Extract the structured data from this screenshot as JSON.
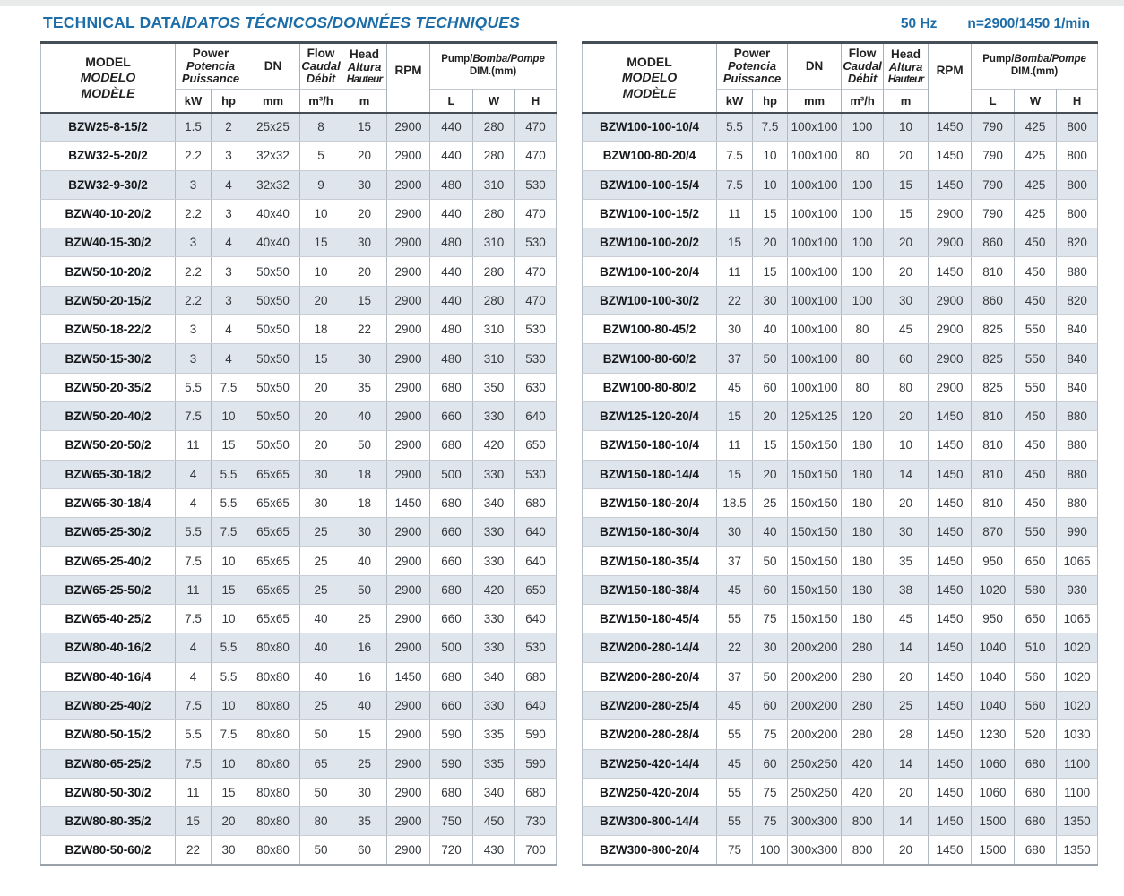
{
  "title": {
    "main": "TECHNICAL DATA/",
    "italic": "DATOS TÉCNICOS/DONNÉES TECHNIQUES"
  },
  "header_right": {
    "frequency": "50 Hz",
    "speed": "n=2900/1450 1/min"
  },
  "colors": {
    "accent_blue": "#1c6da8",
    "row_stripe": "#dfe5ec",
    "border_dark": "#474f56"
  },
  "columns": {
    "model": [
      "MODEL",
      "MODELO",
      "MODÈLE"
    ],
    "power": [
      "Power",
      "Potencia",
      "Puissance"
    ],
    "dn": "DN",
    "flow": [
      "Flow",
      "Caudal",
      "Débit"
    ],
    "head": [
      "Head",
      "Altura",
      "Hauteur"
    ],
    "rpm": "RPM",
    "pump_dim_line1_a": "Pump/",
    "pump_dim_line1_b": "Bomba/Pompe",
    "pump_dim_line2": "DIM.(mm)",
    "units": {
      "kw": "kW",
      "hp": "hp",
      "mm": "mm",
      "m3h": "m³/h",
      "m": "m",
      "l": "L",
      "w": "W",
      "h": "H"
    }
  },
  "tables": {
    "left": {
      "rows": [
        [
          "BZW25-8-15/2",
          "1.5",
          "2",
          "25x25",
          "8",
          "15",
          "2900",
          "440",
          "280",
          "470"
        ],
        [
          "BZW32-5-20/2",
          "2.2",
          "3",
          "32x32",
          "5",
          "20",
          "2900",
          "440",
          "280",
          "470"
        ],
        [
          "BZW32-9-30/2",
          "3",
          "4",
          "32x32",
          "9",
          "30",
          "2900",
          "480",
          "310",
          "530"
        ],
        [
          "BZW40-10-20/2",
          "2.2",
          "3",
          "40x40",
          "10",
          "20",
          "2900",
          "440",
          "280",
          "470"
        ],
        [
          "BZW40-15-30/2",
          "3",
          "4",
          "40x40",
          "15",
          "30",
          "2900",
          "480",
          "310",
          "530"
        ],
        [
          "BZW50-10-20/2",
          "2.2",
          "3",
          "50x50",
          "10",
          "20",
          "2900",
          "440",
          "280",
          "470"
        ],
        [
          "BZW50-20-15/2",
          "2.2",
          "3",
          "50x50",
          "20",
          "15",
          "2900",
          "440",
          "280",
          "470"
        ],
        [
          "BZW50-18-22/2",
          "3",
          "4",
          "50x50",
          "18",
          "22",
          "2900",
          "480",
          "310",
          "530"
        ],
        [
          "BZW50-15-30/2",
          "3",
          "4",
          "50x50",
          "15",
          "30",
          "2900",
          "480",
          "310",
          "530"
        ],
        [
          "BZW50-20-35/2",
          "5.5",
          "7.5",
          "50x50",
          "20",
          "35",
          "2900",
          "680",
          "350",
          "630"
        ],
        [
          "BZW50-20-40/2",
          "7.5",
          "10",
          "50x50",
          "20",
          "40",
          "2900",
          "660",
          "330",
          "640"
        ],
        [
          "BZW50-20-50/2",
          "11",
          "15",
          "50x50",
          "20",
          "50",
          "2900",
          "680",
          "420",
          "650"
        ],
        [
          "BZW65-30-18/2",
          "4",
          "5.5",
          "65x65",
          "30",
          "18",
          "2900",
          "500",
          "330",
          "530"
        ],
        [
          "BZW65-30-18/4",
          "4",
          "5.5",
          "65x65",
          "30",
          "18",
          "1450",
          "680",
          "340",
          "680"
        ],
        [
          "BZW65-25-30/2",
          "5.5",
          "7.5",
          "65x65",
          "25",
          "30",
          "2900",
          "660",
          "330",
          "640"
        ],
        [
          "BZW65-25-40/2",
          "7.5",
          "10",
          "65x65",
          "25",
          "40",
          "2900",
          "660",
          "330",
          "640"
        ],
        [
          "BZW65-25-50/2",
          "11",
          "15",
          "65x65",
          "25",
          "50",
          "2900",
          "680",
          "420",
          "650"
        ],
        [
          "BZW65-40-25/2",
          "7.5",
          "10",
          "65x65",
          "40",
          "25",
          "2900",
          "660",
          "330",
          "640"
        ],
        [
          "BZW80-40-16/2",
          "4",
          "5.5",
          "80x80",
          "40",
          "16",
          "2900",
          "500",
          "330",
          "530"
        ],
        [
          "BZW80-40-16/4",
          "4",
          "5.5",
          "80x80",
          "40",
          "16",
          "1450",
          "680",
          "340",
          "680"
        ],
        [
          "BZW80-25-40/2",
          "7.5",
          "10",
          "80x80",
          "25",
          "40",
          "2900",
          "660",
          "330",
          "640"
        ],
        [
          "BZW80-50-15/2",
          "5.5",
          "7.5",
          "80x80",
          "50",
          "15",
          "2900",
          "590",
          "335",
          "590"
        ],
        [
          "BZW80-65-25/2",
          "7.5",
          "10",
          "80x80",
          "65",
          "25",
          "2900",
          "590",
          "335",
          "590"
        ],
        [
          "BZW80-50-30/2",
          "11",
          "15",
          "80x80",
          "50",
          "30",
          "2900",
          "680",
          "340",
          "680"
        ],
        [
          "BZW80-80-35/2",
          "15",
          "20",
          "80x80",
          "80",
          "35",
          "2900",
          "750",
          "450",
          "730"
        ],
        [
          "BZW80-50-60/2",
          "22",
          "30",
          "80x80",
          "50",
          "60",
          "2900",
          "720",
          "430",
          "700"
        ]
      ]
    },
    "right": {
      "rows": [
        [
          "BZW100-100-10/4",
          "5.5",
          "7.5",
          "100x100",
          "100",
          "10",
          "1450",
          "790",
          "425",
          "800"
        ],
        [
          "BZW100-80-20/4",
          "7.5",
          "10",
          "100x100",
          "80",
          "20",
          "1450",
          "790",
          "425",
          "800"
        ],
        [
          "BZW100-100-15/4",
          "7.5",
          "10",
          "100x100",
          "100",
          "15",
          "1450",
          "790",
          "425",
          "800"
        ],
        [
          "BZW100-100-15/2",
          "11",
          "15",
          "100x100",
          "100",
          "15",
          "2900",
          "790",
          "425",
          "800"
        ],
        [
          "BZW100-100-20/2",
          "15",
          "20",
          "100x100",
          "100",
          "20",
          "2900",
          "860",
          "450",
          "820"
        ],
        [
          "BZW100-100-20/4",
          "11",
          "15",
          "100x100",
          "100",
          "20",
          "1450",
          "810",
          "450",
          "880"
        ],
        [
          "BZW100-100-30/2",
          "22",
          "30",
          "100x100",
          "100",
          "30",
          "2900",
          "860",
          "450",
          "820"
        ],
        [
          "BZW100-80-45/2",
          "30",
          "40",
          "100x100",
          "80",
          "45",
          "2900",
          "825",
          "550",
          "840"
        ],
        [
          "BZW100-80-60/2",
          "37",
          "50",
          "100x100",
          "80",
          "60",
          "2900",
          "825",
          "550",
          "840"
        ],
        [
          "BZW100-80-80/2",
          "45",
          "60",
          "100x100",
          "80",
          "80",
          "2900",
          "825",
          "550",
          "840"
        ],
        [
          "BZW125-120-20/4",
          "15",
          "20",
          "125x125",
          "120",
          "20",
          "1450",
          "810",
          "450",
          "880"
        ],
        [
          "BZW150-180-10/4",
          "11",
          "15",
          "150x150",
          "180",
          "10",
          "1450",
          "810",
          "450",
          "880"
        ],
        [
          "BZW150-180-14/4",
          "15",
          "20",
          "150x150",
          "180",
          "14",
          "1450",
          "810",
          "450",
          "880"
        ],
        [
          "BZW150-180-20/4",
          "18.5",
          "25",
          "150x150",
          "180",
          "20",
          "1450",
          "810",
          "450",
          "880"
        ],
        [
          "BZW150-180-30/4",
          "30",
          "40",
          "150x150",
          "180",
          "30",
          "1450",
          "870",
          "550",
          "990"
        ],
        [
          "BZW150-180-35/4",
          "37",
          "50",
          "150x150",
          "180",
          "35",
          "1450",
          "950",
          "650",
          "1065"
        ],
        [
          "BZW150-180-38/4",
          "45",
          "60",
          "150x150",
          "180",
          "38",
          "1450",
          "1020",
          "580",
          "930"
        ],
        [
          "BZW150-180-45/4",
          "55",
          "75",
          "150x150",
          "180",
          "45",
          "1450",
          "950",
          "650",
          "1065"
        ],
        [
          "BZW200-280-14/4",
          "22",
          "30",
          "200x200",
          "280",
          "14",
          "1450",
          "1040",
          "510",
          "1020"
        ],
        [
          "BZW200-280-20/4",
          "37",
          "50",
          "200x200",
          "280",
          "20",
          "1450",
          "1040",
          "560",
          "1020"
        ],
        [
          "BZW200-280-25/4",
          "45",
          "60",
          "200x200",
          "280",
          "25",
          "1450",
          "1040",
          "560",
          "1020"
        ],
        [
          "BZW200-280-28/4",
          "55",
          "75",
          "200x200",
          "280",
          "28",
          "1450",
          "1230",
          "520",
          "1030"
        ],
        [
          "BZW250-420-14/4",
          "45",
          "60",
          "250x250",
          "420",
          "14",
          "1450",
          "1060",
          "680",
          "1100"
        ],
        [
          "BZW250-420-20/4",
          "55",
          "75",
          "250x250",
          "420",
          "20",
          "1450",
          "1060",
          "680",
          "1100"
        ],
        [
          "BZW300-800-14/4",
          "55",
          "75",
          "300x300",
          "800",
          "14",
          "1450",
          "1500",
          "680",
          "1350"
        ],
        [
          "BZW300-800-20/4",
          "75",
          "100",
          "300x300",
          "800",
          "20",
          "1450",
          "1500",
          "680",
          "1350"
        ]
      ]
    }
  }
}
